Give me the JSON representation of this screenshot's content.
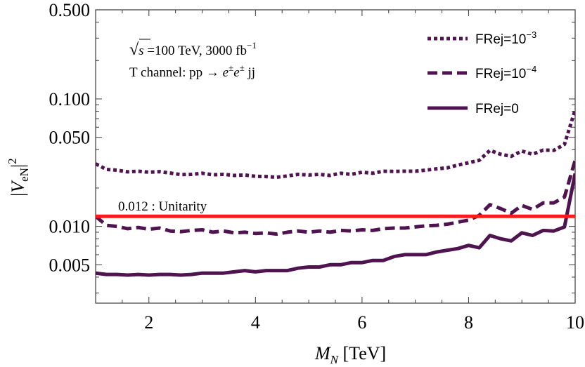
{
  "chart_data": {
    "type": "line",
    "x_scale": "linear",
    "y_scale": "log",
    "xlim": [
      1,
      10
    ],
    "ylim": [
      0.0025,
      0.5
    ],
    "xlabel": "M_N [TeV]",
    "ylabel": "|V_eN|^2",
    "x_ticks": [
      {
        "value": 2,
        "label": "2"
      },
      {
        "value": 4,
        "label": "4"
      },
      {
        "value": 6,
        "label": "6"
      },
      {
        "value": 8,
        "label": "8"
      },
      {
        "value": 10,
        "label": "10"
      }
    ],
    "y_ticks": [
      {
        "value": 0.005,
        "label": "0.005"
      },
      {
        "value": 0.01,
        "label": "0.010"
      },
      {
        "value": 0.05,
        "label": "0.050"
      },
      {
        "value": 0.1,
        "label": "0.100"
      },
      {
        "value": 0.5,
        "label": "0.500"
      }
    ],
    "annotations": {
      "energy_prefix": "√",
      "energy_s": "s",
      "energy_text": " =100 TeV, 3000 fb",
      "energy_sup": "−1",
      "channel_text": "T channel: pp → ",
      "channel_e1": "e",
      "channel_e2": "e",
      "channel_pm": "±",
      "channel_jj": " jj"
    },
    "reference_line": {
      "name": "unitarity",
      "value": 0.012,
      "label": "0.012 : Unitarity",
      "color": "#ff1a1a"
    },
    "legend": {
      "position": "top-right",
      "entries": [
        {
          "series": 0,
          "label_base": "FRej=10",
          "label_sup": "−3"
        },
        {
          "series": 1,
          "label_base": "FRej=10",
          "label_sup": "−4"
        },
        {
          "series": 2,
          "label_base": "FRej=0",
          "label_sup": ""
        }
      ]
    },
    "series": [
      {
        "name": "FRej=10^-3",
        "style": "dotted",
        "color": "#4f1350",
        "x": [
          1.0,
          1.2,
          1.4,
          1.6,
          1.8,
          2.0,
          2.2,
          2.4,
          2.6,
          2.8,
          3.0,
          3.2,
          3.4,
          3.6,
          3.8,
          4.0,
          4.2,
          4.4,
          4.6,
          4.8,
          5.0,
          5.2,
          5.4,
          5.6,
          5.8,
          6.0,
          6.2,
          6.4,
          6.6,
          6.8,
          7.0,
          7.2,
          7.4,
          7.6,
          7.8,
          8.0,
          8.2,
          8.4,
          8.6,
          8.8,
          9.0,
          9.2,
          9.4,
          9.6,
          9.8,
          10.0
        ],
        "y": [
          0.031,
          0.028,
          0.0276,
          0.0268,
          0.0271,
          0.0266,
          0.0269,
          0.0262,
          0.0255,
          0.0256,
          0.0261,
          0.0254,
          0.0256,
          0.0251,
          0.0253,
          0.0247,
          0.0246,
          0.0243,
          0.0249,
          0.0256,
          0.0253,
          0.0256,
          0.0251,
          0.0261,
          0.0256,
          0.0266,
          0.0261,
          0.0271,
          0.027,
          0.0271,
          0.0271,
          0.0276,
          0.0283,
          0.0288,
          0.0303,
          0.0316,
          0.033,
          0.0395,
          0.0368,
          0.0355,
          0.039,
          0.0368,
          0.0397,
          0.0395,
          0.044,
          0.082
        ]
      },
      {
        "name": "FRej=10^-4",
        "style": "dashed",
        "color": "#4f1350",
        "x": [
          1.0,
          1.2,
          1.4,
          1.6,
          1.8,
          2.0,
          2.2,
          2.4,
          2.6,
          2.8,
          3.0,
          3.2,
          3.4,
          3.6,
          3.8,
          4.0,
          4.2,
          4.4,
          4.6,
          4.8,
          5.0,
          5.2,
          5.4,
          5.6,
          5.8,
          6.0,
          6.2,
          6.4,
          6.6,
          6.8,
          7.0,
          7.2,
          7.4,
          7.6,
          7.8,
          8.0,
          8.2,
          8.4,
          8.6,
          8.8,
          9.0,
          9.2,
          9.4,
          9.6,
          9.8,
          10.0
        ],
        "y": [
          0.012,
          0.0102,
          0.01,
          0.0096,
          0.0098,
          0.0095,
          0.0097,
          0.0092,
          0.0091,
          0.0093,
          0.0094,
          0.009,
          0.0092,
          0.0089,
          0.009,
          0.0088,
          0.0089,
          0.0087,
          0.009,
          0.0092,
          0.009,
          0.0092,
          0.009,
          0.0093,
          0.0092,
          0.0094,
          0.0093,
          0.0096,
          0.0097,
          0.0097,
          0.0099,
          0.0101,
          0.0102,
          0.0104,
          0.0108,
          0.0112,
          0.0122,
          0.0148,
          0.0138,
          0.0127,
          0.0146,
          0.0136,
          0.0153,
          0.0153,
          0.017,
          0.033
        ]
      },
      {
        "name": "FRej=0",
        "style": "solid",
        "color": "#4f1350",
        "x": [
          1.0,
          1.2,
          1.4,
          1.6,
          1.8,
          2.0,
          2.2,
          2.4,
          2.6,
          2.8,
          3.0,
          3.2,
          3.4,
          3.6,
          3.8,
          4.0,
          4.2,
          4.4,
          4.6,
          4.8,
          5.0,
          5.2,
          5.4,
          5.6,
          5.8,
          6.0,
          6.2,
          6.4,
          6.6,
          6.8,
          7.0,
          7.2,
          7.4,
          7.6,
          7.8,
          8.0,
          8.2,
          8.4,
          8.6,
          8.8,
          9.0,
          9.2,
          9.4,
          9.6,
          9.8,
          10.0
        ],
        "y": [
          0.0043,
          0.0042,
          0.0042,
          0.00415,
          0.0042,
          0.00415,
          0.0042,
          0.0042,
          0.00415,
          0.0042,
          0.0043,
          0.0043,
          0.0043,
          0.0044,
          0.0045,
          0.0044,
          0.0045,
          0.0045,
          0.0045,
          0.0047,
          0.0048,
          0.0048,
          0.005,
          0.005,
          0.0052,
          0.0052,
          0.0054,
          0.0054,
          0.0058,
          0.006,
          0.006,
          0.006,
          0.0063,
          0.0065,
          0.0067,
          0.0071,
          0.0068,
          0.0085,
          0.008,
          0.0077,
          0.0089,
          0.0085,
          0.0093,
          0.0092,
          0.0099,
          0.026
        ]
      }
    ]
  }
}
